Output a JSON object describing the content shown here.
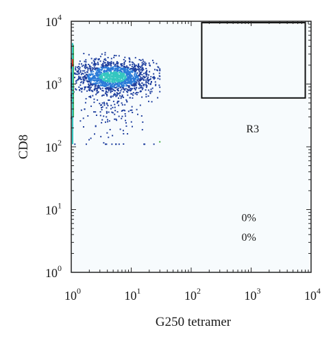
{
  "chart_data": {
    "type": "scatter",
    "title": "",
    "xlabel": "G250 tetramer",
    "ylabel": "CD8",
    "x_scale": "log",
    "y_scale": "log",
    "xlim": [
      1,
      10000
    ],
    "ylim": [
      1,
      10000
    ],
    "x_ticks": [
      {
        "base": "10",
        "exp": "0",
        "value": 1
      },
      {
        "base": "10",
        "exp": "1",
        "value": 10
      },
      {
        "base": "10",
        "exp": "2",
        "value": 100
      },
      {
        "base": "10",
        "exp": "3",
        "value": 1000
      },
      {
        "base": "10",
        "exp": "4",
        "value": 10000
      }
    ],
    "y_ticks": [
      {
        "base": "10",
        "exp": "0",
        "value": 1
      },
      {
        "base": "10",
        "exp": "1",
        "value": 10
      },
      {
        "base": "10",
        "exp": "2",
        "value": 100
      },
      {
        "base": "10",
        "exp": "3",
        "value": 1000
      },
      {
        "base": "10",
        "exp": "4",
        "value": 10000
      }
    ],
    "gate": {
      "name": "R3",
      "x_range": [
        150,
        8000
      ],
      "y_range": [
        600,
        9500
      ]
    },
    "annotations": [
      {
        "text": "R3",
        "x": 1200,
        "y": 170
      },
      {
        "text": "0%",
        "x": 1000,
        "y": 6.5
      },
      {
        "text": "0%",
        "x": 1000,
        "y": 3.2
      }
    ],
    "population": {
      "description_points": "main cluster of events",
      "center_x": 5,
      "center_y": 1300,
      "x_range": [
        1,
        30
      ],
      "y_range": [
        110,
        4500
      ],
      "axis_stack_x": 1,
      "outlier": {
        "x": 30,
        "y": 120
      }
    },
    "colors": {
      "density_low": "#1f3f9e",
      "density_mid": "#2a7bd8",
      "density_high": "#35c6c0",
      "axis_stack_green": "#3fae3f",
      "axis_stack_red": "#d23a2a",
      "plot_background": "#f7fbfd"
    },
    "grid": false,
    "legend": "none"
  }
}
